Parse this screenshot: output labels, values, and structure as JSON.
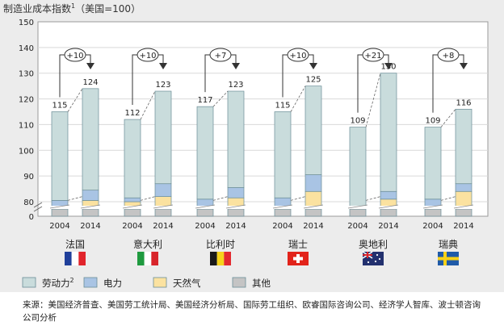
{
  "chart_data": {
    "type": "bar",
    "stacked": true,
    "title_main": "制造业成本指数",
    "title_sup": "1",
    "title_suffix": "（美国=100）",
    "y_ticks": [
      0,
      80,
      90,
      100,
      110,
      120,
      130,
      140,
      150
    ],
    "ylim": [
      0,
      150
    ],
    "axis_break": true,
    "years": [
      "2004",
      "2014"
    ],
    "countries": [
      {
        "name": "法国",
        "flag": "france-flag",
        "totals": [
          115,
          124
        ],
        "change": "+10",
        "segments": [
          [
            78.5,
            0.5,
            1.5,
            34.5
          ],
          [
            79,
            1.5,
            4,
            39.5
          ]
        ]
      },
      {
        "name": "意大利",
        "flag": "italy-flag",
        "totals": [
          112,
          123
        ],
        "change": "+10",
        "segments": [
          [
            78.5,
            1.5,
            1.5,
            30.5
          ],
          [
            79,
            3,
            5,
            36
          ]
        ]
      },
      {
        "name": "比利时",
        "flag": "belgium-flag",
        "totals": [
          117,
          123
        ],
        "change": "+7",
        "segments": [
          [
            78.5,
            1,
            1.5,
            36
          ],
          [
            79,
            2.5,
            4,
            37.5
          ]
        ]
      },
      {
        "name": "瑞士",
        "flag": "switzerland-flag",
        "totals": [
          115,
          125
        ],
        "change": "+10",
        "segments": [
          [
            78.5,
            0.5,
            2.5,
            33.5
          ],
          [
            78.5,
            5.5,
            6.5,
            34.5
          ]
        ]
      },
      {
        "name": "奥地利",
        "flag": "austria-flag",
        "totals": [
          109,
          130
        ],
        "change": "+21",
        "segments": [
          [
            78.5,
            0.5,
            0.5,
            29.5
          ],
          [
            79,
            2,
            3,
            46
          ]
        ]
      },
      {
        "name": "瑞典",
        "flag": "sweden-flag",
        "totals": [
          109,
          116
        ],
        "change": "+8",
        "segments": [
          [
            78.5,
            1,
            1.5,
            28
          ],
          [
            79,
            5,
            3,
            29
          ]
        ]
      }
    ],
    "legend": [
      {
        "key": "labor",
        "label": "劳动力",
        "sup": "2",
        "color": "#c9dcdc"
      },
      {
        "key": "electricity",
        "label": "电力",
        "color": "#a9c4e4"
      },
      {
        "key": "natural_gas",
        "label": "天然气",
        "color": "#fbe2a0"
      },
      {
        "key": "other",
        "label": "其他",
        "color": "#c4c4c4"
      }
    ],
    "segment_order": [
      "other",
      "natural_gas",
      "electricity",
      "labor"
    ],
    "source": "来源：美国经济普查、美国劳工统计局、美国经济分析局、国际劳工组织、欧睿国际咨询公司、经济学人智库、波士顿咨询公司分析"
  }
}
